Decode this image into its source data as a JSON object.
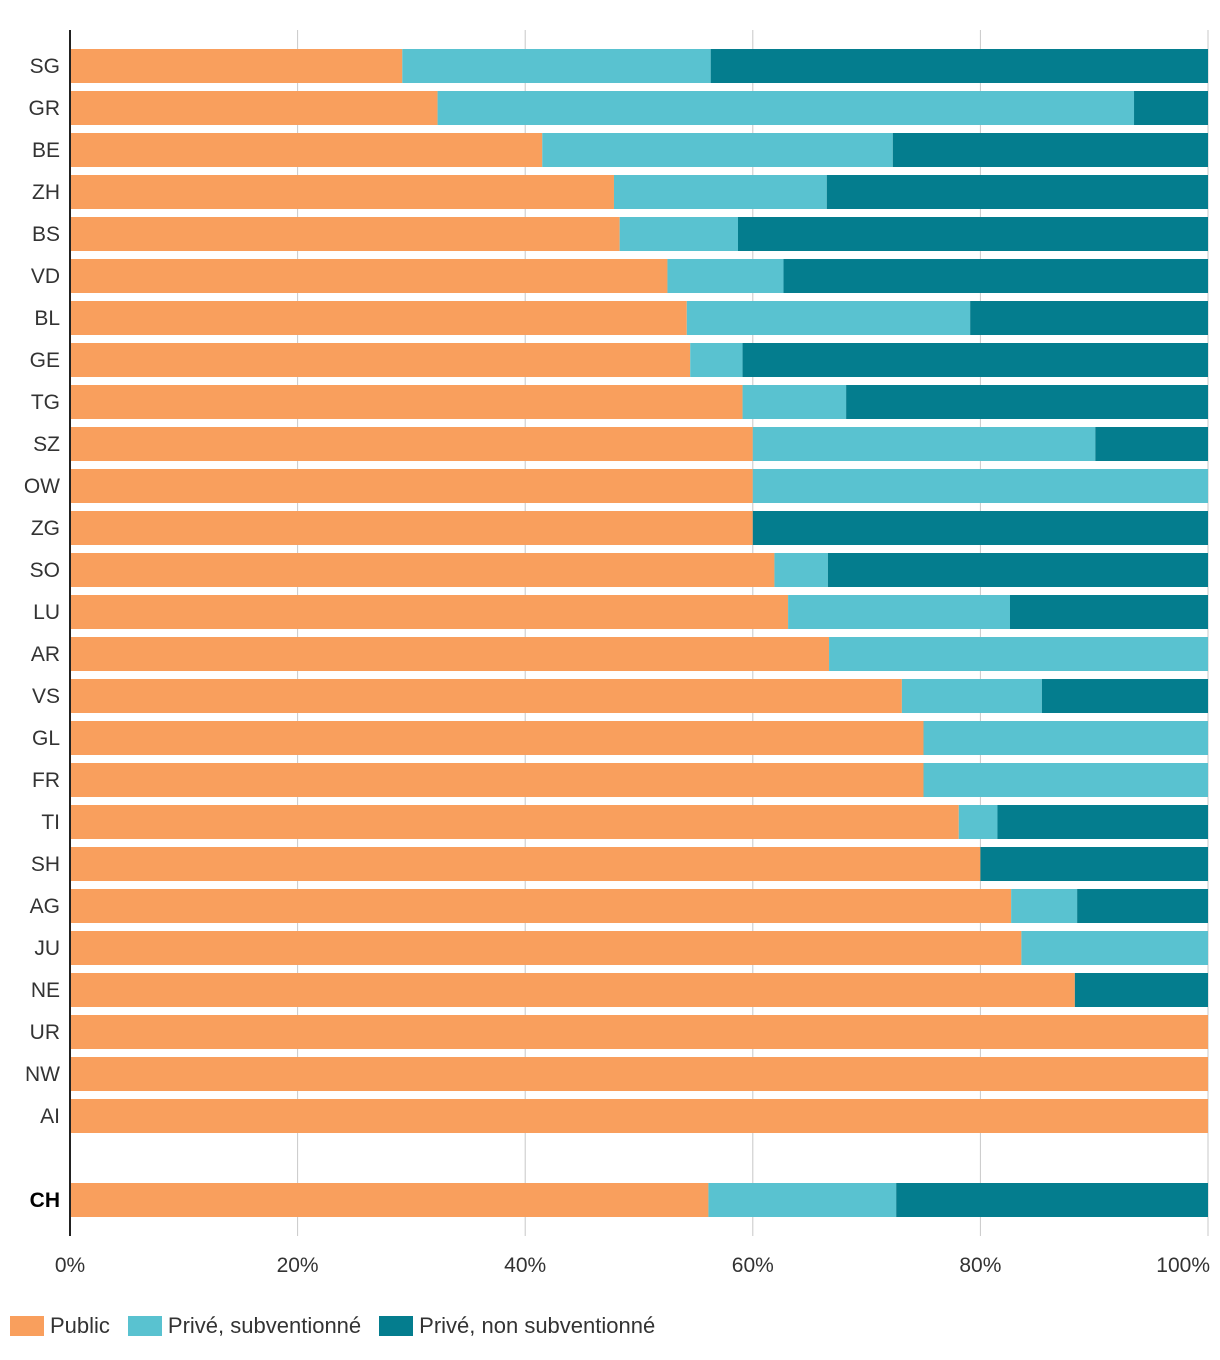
{
  "chart_data": {
    "type": "bar",
    "orientation": "horizontal",
    "stacked": true,
    "xlim": [
      0,
      100
    ],
    "x_ticks": [
      "0%",
      "20%",
      "40%",
      "60%",
      "80%",
      "100%"
    ],
    "grid": true,
    "legend_position": "bottom-left",
    "categories": [
      "SG",
      "GR",
      "BE",
      "ZH",
      "BS",
      "VD",
      "BL",
      "GE",
      "TG",
      "SZ",
      "OW",
      "ZG",
      "SO",
      "LU",
      "AR",
      "VS",
      "GL",
      "FR",
      "TI",
      "SH",
      "AG",
      "JU",
      "NE",
      "UR",
      "NW",
      "AI",
      "CH"
    ],
    "series": [
      {
        "name": "Public",
        "color": "#f99f5d",
        "values": [
          29.2,
          32.3,
          41.5,
          47.8,
          48.3,
          52.5,
          54.2,
          54.5,
          59.1,
          60.0,
          60.0,
          60.0,
          61.9,
          63.1,
          66.7,
          73.1,
          75.0,
          75.0,
          78.1,
          80.0,
          82.7,
          83.6,
          88.3,
          100.0,
          100.0,
          100.0,
          56.1
        ]
      },
      {
        "name": "Privé, subventionné",
        "color": "#59c2d0",
        "values": [
          27.1,
          61.2,
          30.8,
          18.7,
          10.4,
          10.2,
          24.9,
          4.6,
          9.1,
          30.1,
          40.0,
          0.0,
          4.7,
          19.5,
          33.3,
          12.3,
          25.0,
          25.0,
          3.4,
          0.0,
          5.8,
          16.4,
          0.0,
          0.0,
          0.0,
          0.0,
          16.5
        ]
      },
      {
        "name": "Privé, non subventionné",
        "color": "#047d8e",
        "values": [
          43.7,
          6.5,
          27.7,
          33.5,
          41.3,
          37.3,
          20.9,
          40.9,
          31.8,
          9.9,
          0.0,
          40.0,
          33.4,
          17.4,
          0.0,
          14.6,
          0.0,
          0.0,
          18.5,
          20.0,
          11.5,
          0.0,
          11.7,
          0.0,
          0.0,
          0.0,
          27.4
        ]
      }
    ],
    "bold_categories": [
      "CH"
    ]
  }
}
